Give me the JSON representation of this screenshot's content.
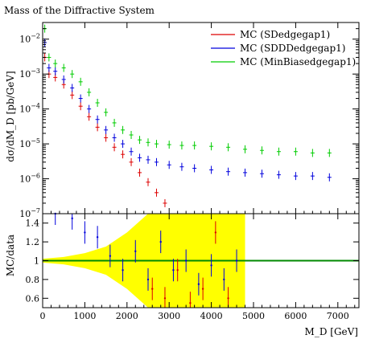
{
  "title": "Mass of the Diffractive System",
  "main_ylabel": "dσ/dM_D [pb/GeV]",
  "ratio_ylabel": "MC/data",
  "xlabel": "M_D [GeV]",
  "colors": {
    "sd": "#dd0000",
    "sddd": "#0000dd",
    "minbias": "#00cc00",
    "band": "#ffff00",
    "ref": "#008800"
  },
  "chart_data": [
    {
      "type": "scatter",
      "title": "Mass of the Diffractive System",
      "ylabel": "dσ/dM_D [pb/GeV]",
      "yscale": "log",
      "xlim": [
        0,
        7500
      ],
      "ylim": [
        1e-07,
        0.03
      ],
      "xticks": [
        0,
        1000,
        2000,
        3000,
        4000,
        5000,
        6000,
        7000
      ],
      "yticks": [
        {
          "value": 1e-07,
          "base": "10",
          "exp": "−7"
        },
        {
          "value": 1e-06,
          "base": "10",
          "exp": "−6"
        },
        {
          "value": 1e-05,
          "base": "10",
          "exp": "−5"
        },
        {
          "value": 0.0001,
          "base": "10",
          "exp": "−4"
        },
        {
          "value": 0.001,
          "base": "10",
          "exp": "−3"
        },
        {
          "value": 0.01,
          "base": "10",
          "exp": "−2"
        }
      ],
      "legend_position": "top-right",
      "series": [
        {
          "name": "MC (SDedgegap1)",
          "key": "sd",
          "x": [
            50,
            150,
            300,
            500,
            700,
            900,
            1100,
            1300,
            1500,
            1700,
            1900,
            2100,
            2300,
            2500,
            2700,
            2900
          ],
          "y": [
            0.003,
            0.001,
            0.0008,
            0.0005,
            0.00025,
            0.00012,
            6e-05,
            3e-05,
            1.5e-05,
            8e-06,
            5e-06,
            3e-06,
            1.5e-06,
            8e-07,
            4e-07,
            2e-07
          ]
        },
        {
          "name": "MC (SDDDedgegap1)",
          "key": "sddd",
          "x": [
            50,
            150,
            300,
            500,
            700,
            900,
            1100,
            1300,
            1500,
            1700,
            1900,
            2100,
            2300,
            2500,
            2700,
            3000,
            3300,
            3600,
            4000,
            4400,
            4800,
            5200,
            5600,
            6000,
            6400,
            6800
          ],
          "y": [
            0.008,
            0.0015,
            0.0012,
            0.0007,
            0.0004,
            0.0002,
            0.0001,
            5e-05,
            2.5e-05,
            1.5e-05,
            1e-05,
            6e-06,
            4e-06,
            3.5e-06,
            3e-06,
            2.5e-06,
            2.2e-06,
            2e-06,
            1.8e-06,
            1.6e-06,
            1.5e-06,
            1.4e-06,
            1.3e-06,
            1.2e-06,
            1.2e-06,
            1.1e-06
          ]
        },
        {
          "name": "MC (MinBiasedgegap1)",
          "key": "minbias",
          "x": [
            50,
            150,
            300,
            500,
            700,
            900,
            1100,
            1300,
            1500,
            1700,
            1900,
            2100,
            2300,
            2500,
            2700,
            3000,
            3300,
            3600,
            4000,
            4400,
            4800,
            5200,
            5600,
            6000,
            6400,
            6800
          ],
          "y": [
            0.02,
            0.003,
            0.002,
            0.0015,
            0.001,
            0.0006,
            0.0003,
            0.00015,
            8e-05,
            4e-05,
            2.5e-05,
            1.8e-05,
            1.3e-05,
            1.1e-05,
            1e-05,
            9.5e-06,
            9e-06,
            9e-06,
            8.5e-06,
            8e-06,
            7e-06,
            6.5e-06,
            6e-06,
            6e-06,
            5.5e-06,
            5.5e-06
          ]
        }
      ]
    },
    {
      "type": "scatter",
      "ylabel": "MC/data",
      "xlabel": "M_D [GeV]",
      "xlim": [
        0,
        7500
      ],
      "ylim": [
        0.5,
        1.5
      ],
      "xticks": [
        0,
        1000,
        2000,
        3000,
        4000,
        5000,
        6000,
        7000
      ],
      "yticks": [
        0.6,
        0.8,
        1.0,
        1.2,
        1.4
      ],
      "ytick_labels": [
        "0.6",
        "0.8",
        "1",
        "1.2",
        "1.4"
      ],
      "reference": 1.0,
      "band": {
        "x": [
          0,
          500,
          1000,
          1500,
          2000,
          2500,
          3000,
          3500,
          4000,
          4500,
          4800
        ],
        "halfwidth": [
          0.02,
          0.04,
          0.08,
          0.15,
          0.3,
          0.5,
          0.5,
          0.5,
          0.5,
          0.5,
          0.5
        ]
      },
      "series": [
        {
          "name": "MC (SDDDedgegap1)",
          "key": "sddd",
          "x": [
            300,
            700,
            1000,
            1300,
            1600,
            1900,
            2200,
            2500,
            2800,
            3100,
            3400,
            3700,
            4000,
            4300,
            4600
          ],
          "y": [
            1.5,
            1.45,
            1.3,
            1.25,
            1.05,
            0.9,
            1.1,
            0.8,
            1.2,
            0.9,
            1.0,
            0.75,
            0.95,
            0.8,
            1.0
          ]
        },
        {
          "name": "MC (SDedgegap1)",
          "key": "sd",
          "x": [
            2600,
            2900,
            3200,
            3500,
            3800,
            4100,
            4400
          ],
          "y": [
            0.7,
            0.6,
            0.9,
            0.55,
            0.7,
            1.3,
            0.6
          ]
        }
      ]
    }
  ]
}
